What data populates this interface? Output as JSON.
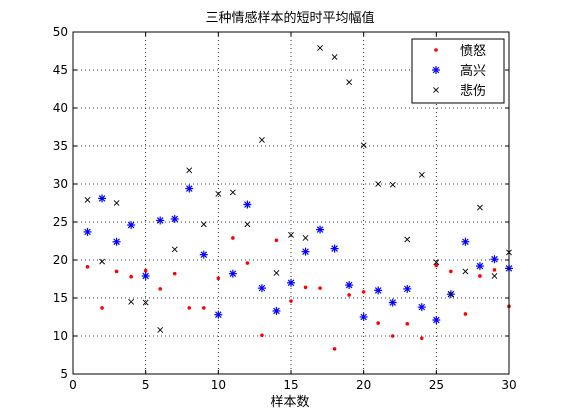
{
  "chart_data": {
    "type": "scatter",
    "title": "三种情感样本的短时平均幅值",
    "xlabel": "样本数",
    "ylabel": "",
    "xlim": [
      0,
      30
    ],
    "ylim": [
      5,
      50
    ],
    "xticks": [
      0,
      5,
      10,
      15,
      20,
      25,
      30
    ],
    "yticks": [
      5,
      10,
      15,
      20,
      25,
      30,
      35,
      40,
      45,
      50
    ],
    "grid": true,
    "legend_position": "top-right",
    "series": [
      {
        "name": "愤怒",
        "marker": "dot",
        "color": "#ff0000",
        "x": [
          1,
          2,
          3,
          4,
          5,
          6,
          7,
          8,
          9,
          10,
          11,
          12,
          13,
          14,
          15,
          16,
          17,
          18,
          19,
          20,
          21,
          22,
          23,
          24,
          25,
          26,
          27,
          28,
          29,
          30
        ],
        "y": [
          19.1,
          13.7,
          18.5,
          17.8,
          18.6,
          16.2,
          18.2,
          13.7,
          13.7,
          17.6,
          22.9,
          19.6,
          10.1,
          22.6,
          14.6,
          16.4,
          16.3,
          8.3,
          15.4,
          15.8,
          11.7,
          10.0,
          11.6,
          9.7,
          19.3,
          18.5,
          12.9,
          17.9,
          18.7,
          13.9
        ]
      },
      {
        "name": "高兴",
        "marker": "star",
        "color": "#0000ff",
        "x": [
          1,
          2,
          3,
          4,
          5,
          6,
          7,
          8,
          9,
          10,
          11,
          12,
          13,
          14,
          15,
          16,
          17,
          18,
          19,
          20,
          21,
          22,
          23,
          24,
          25,
          26,
          27,
          28,
          29,
          30
        ],
        "y": [
          23.7,
          28.1,
          22.4,
          24.6,
          17.9,
          25.2,
          25.4,
          29.4,
          20.7,
          12.8,
          18.2,
          27.3,
          16.3,
          13.3,
          17.0,
          21.1,
          24.0,
          21.5,
          16.7,
          12.5,
          16.0,
          14.4,
          16.2,
          13.8,
          12.1,
          15.5,
          22.4,
          19.2,
          20.1,
          18.9
        ]
      },
      {
        "name": "悲伤",
        "marker": "x",
        "color": "#000000",
        "x": [
          1,
          2,
          3,
          4,
          5,
          6,
          7,
          8,
          9,
          10,
          11,
          12,
          13,
          14,
          15,
          16,
          17,
          18,
          19,
          20,
          21,
          22,
          23,
          24,
          25,
          26,
          27,
          28,
          29,
          30
        ],
        "y": [
          27.9,
          19.8,
          27.5,
          14.5,
          14.4,
          10.8,
          21.4,
          31.8,
          24.7,
          28.7,
          28.9,
          24.7,
          35.8,
          18.3,
          23.3,
          22.9,
          47.9,
          46.7,
          43.4,
          35.1,
          30.0,
          29.9,
          22.7,
          31.2,
          19.7,
          15.5,
          18.5,
          26.9,
          17.9,
          21.0
        ]
      }
    ]
  }
}
